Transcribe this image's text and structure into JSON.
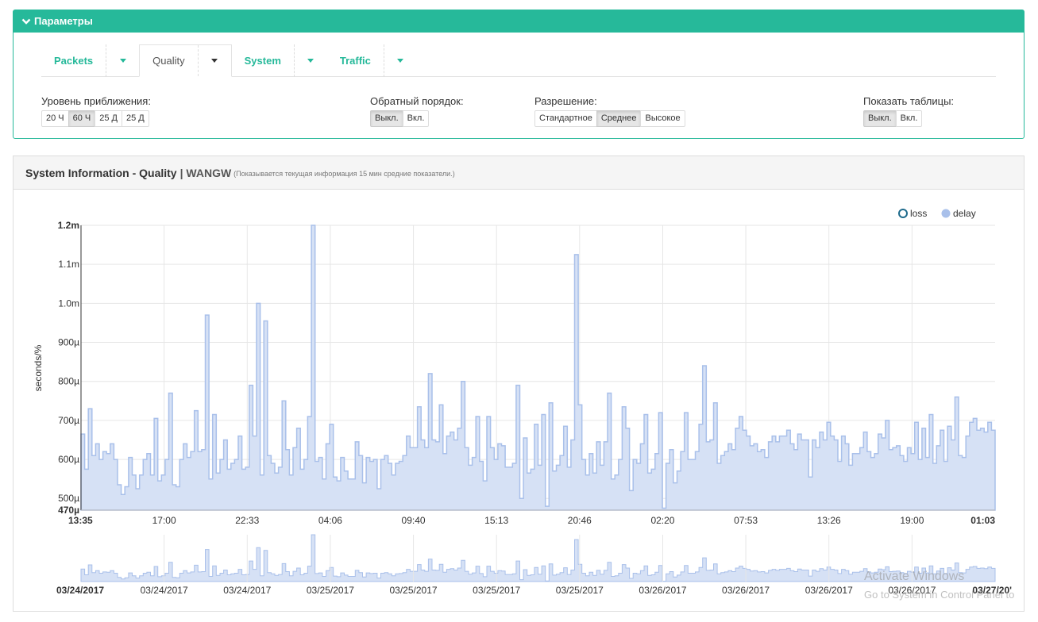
{
  "params": {
    "title": "Параметры",
    "tabs": [
      {
        "label": "Packets",
        "active": false
      },
      {
        "label": "Quality",
        "active": true
      },
      {
        "label": "System",
        "active": false
      },
      {
        "label": "Traffic",
        "active": false
      }
    ],
    "zoom": {
      "title": "Уровень приближения:",
      "options": [
        "20 Ч",
        "60 Ч",
        "25 Д",
        "25 Д"
      ],
      "selected": 1
    },
    "reverse": {
      "title": "Обратный порядок:",
      "options": [
        "Выкл.",
        "Вкл."
      ],
      "selected": 0
    },
    "resolution": {
      "title": "Разрешение:",
      "options": [
        "Стандартное",
        "Среднее",
        "Высокое"
      ],
      "selected": 1
    },
    "tables": {
      "title": "Показать таблицы:",
      "options": [
        "Выкл.",
        "Вкл."
      ],
      "selected": 0
    }
  },
  "panel": {
    "title": "System Information - Quality",
    "host": "| WANGW",
    "note": "(Показывается текущая информация 15 мин средние показатели.)"
  },
  "colors": {
    "accent": "#26b99a",
    "area_fill": "#d6e1f5",
    "area_line": "#a9c0ea",
    "loss_marker": "#1f6b8c"
  },
  "chart_data": {
    "type": "area",
    "ylabel": "seconds/%",
    "ylim": [
      470,
      1200
    ],
    "y_unit_note": "values in microseconds",
    "y_ticks": [
      "470µ",
      "500µ",
      "600µ",
      "700µ",
      "800µ",
      "900µ",
      "1.0m",
      "1.1m",
      "1.2m"
    ],
    "y_tick_values": [
      470,
      500,
      600,
      700,
      800,
      900,
      1000,
      1100,
      1200
    ],
    "x_ticks": [
      "13:35",
      "17:00",
      "22:33",
      "04:06",
      "09:40",
      "15:13",
      "20:46",
      "02:20",
      "07:53",
      "13:26",
      "19:00",
      "01:03"
    ],
    "overview_x_ticks": [
      "03/24/2017",
      "03/24/2017",
      "03/24/2017",
      "03/25/2017",
      "03/25/2017",
      "03/25/2017",
      "03/25/2017",
      "03/26/2017",
      "03/26/2017",
      "03/26/2017",
      "03/26/2017",
      "03/27/20'"
    ],
    "legend": [
      {
        "name": "loss",
        "marker": "hollow-circle"
      },
      {
        "name": "delay",
        "marker": "filled-circle"
      }
    ],
    "series": [
      {
        "name": "delay",
        "values": [
          665,
          575,
          730,
          610,
          640,
          600,
          620,
          615,
          640,
          600,
          535,
          510,
          530,
          605,
          560,
          525,
          560,
          600,
          615,
          560,
          705,
          545,
          560,
          600,
          770,
          535,
          530,
          600,
          640,
          605,
          620,
          725,
          620,
          625,
          970,
          550,
          715,
          565,
          600,
          650,
          575,
          590,
          600,
          660,
          575,
          580,
          790,
          660,
          1000,
          560,
          955,
          610,
          590,
          565,
          580,
          750,
          625,
          560,
          630,
          680,
          575,
          600,
          710,
          1200,
          595,
          605,
          550,
          640,
          690,
          555,
          545,
          605,
          570,
          550,
          550,
          645,
          610,
          540,
          605,
          595,
          600,
          525,
          600,
          610,
          590,
          560,
          590,
          595,
          610,
          660,
          630,
          630,
          735,
          650,
          630,
          820,
          650,
          645,
          740,
          615,
          660,
          670,
          650,
          680,
          800,
          630,
          585,
          605,
          710,
          595,
          545,
          710,
          630,
          600,
          640,
          635,
          580,
          580,
          590,
          790,
          500,
          655,
          565,
          575,
          690,
          585,
          715,
          480,
          745,
          570,
          585,
          610,
          685,
          580,
          650,
          1125,
          740,
          600,
          560,
          615,
          565,
          645,
          585,
          645,
          770,
          550,
          560,
          600,
          735,
          680,
          520,
          600,
          590,
          640,
          715,
          565,
          575,
          615,
          720,
          475,
          590,
          625,
          540,
          570,
          620,
          720,
          600,
          600,
          620,
          690,
          840,
          645,
          650,
          745,
          590,
          610,
          620,
          640,
          625,
          680,
          710,
          675,
          660,
          635,
          640,
          620,
          625,
          605,
          645,
          660,
          645,
          660,
          660,
          675,
          640,
          625,
          665,
          650,
          650,
          555,
          650,
          630,
          670,
          650,
          695,
          660,
          650,
          595,
          660,
          640,
          585,
          615,
          615,
          630,
          670,
          620,
          605,
          615,
          665,
          655,
          700,
          625,
          630,
          635,
          610,
          595,
          630,
          615,
          695,
          600,
          680,
          605,
          715,
          590,
          635,
          675,
          595,
          685,
          650,
          760,
          610,
          605,
          660,
          695,
          705,
          675,
          680,
          670,
          695,
          675
        ]
      }
    ]
  },
  "watermark": {
    "line1": "Activate Windows",
    "line2": "Go to System in Control Panel to"
  }
}
